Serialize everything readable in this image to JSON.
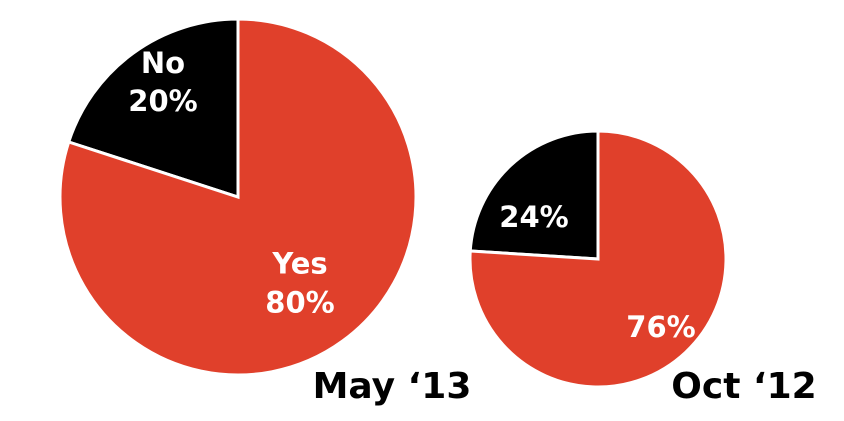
{
  "chart_data": [
    {
      "type": "pie",
      "title": "May ‘13",
      "slices": [
        {
          "name": "No",
          "value": 20,
          "label_lines": [
            "No",
            "20%"
          ],
          "color": "#000000"
        },
        {
          "name": "Yes",
          "value": 80,
          "label_lines": [
            "Yes",
            "80%"
          ],
          "color": "#e0402b"
        }
      ]
    },
    {
      "type": "pie",
      "title": "Oct ‘12",
      "slices": [
        {
          "name": "",
          "value": 24,
          "label_lines": [
            "24%"
          ],
          "color": "#000000"
        },
        {
          "name": "",
          "value": 76,
          "label_lines": [
            "76%"
          ],
          "color": "#e0402b"
        }
      ]
    }
  ],
  "colors": {
    "accent": "#e0402b",
    "dark": "#000000",
    "separator": "#ffffff"
  }
}
